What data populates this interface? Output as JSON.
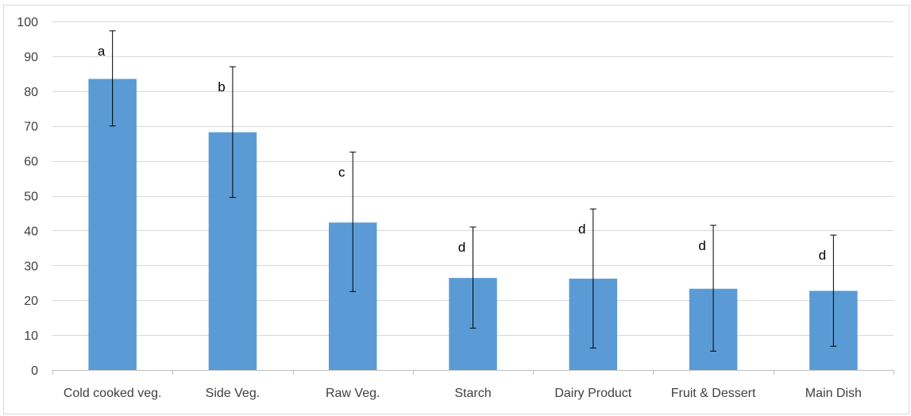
{
  "chart_data": {
    "type": "bar",
    "title": "",
    "xlabel": "",
    "ylabel": "",
    "ylim": [
      0,
      100
    ],
    "yticks": [
      0,
      10,
      20,
      30,
      40,
      50,
      60,
      70,
      80,
      90,
      100
    ],
    "grid": true,
    "legend": "none",
    "bar_color": "#5B9BD5",
    "categories": [
      "Cold cooked veg.",
      "Side Veg.",
      "Raw Veg.",
      "Starch",
      "Dairy Product",
      "Fruit & Dessert",
      "Main Dish"
    ],
    "values": [
      83.5,
      68.2,
      42.3,
      26.4,
      26.2,
      23.3,
      22.7
    ],
    "error_bars": [
      {
        "low": 70.0,
        "high": 97.3
      },
      {
        "low": 49.5,
        "high": 87.0
      },
      {
        "low": 22.5,
        "high": 62.5
      },
      {
        "low": 12.0,
        "high": 41.0
      },
      {
        "low": 6.3,
        "high": 46.2
      },
      {
        "low": 5.4,
        "high": 41.5
      },
      {
        "low": 6.8,
        "high": 38.7
      }
    ],
    "annotations": [
      "a",
      "b",
      "c",
      "d",
      "d",
      "d",
      "d"
    ]
  }
}
